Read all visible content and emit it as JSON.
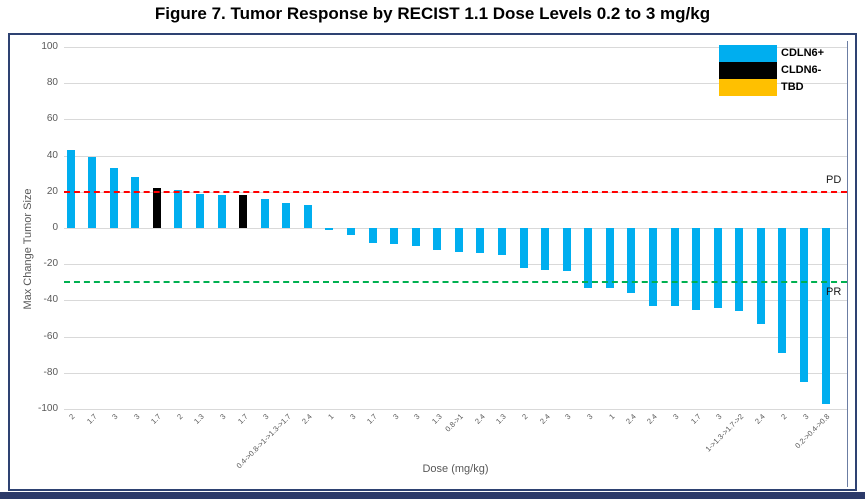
{
  "title": "Figure 7. Tumor Response by RECIST 1.1 Dose Levels 0.2 to 3 mg/kg",
  "colors": {
    "cdln6_positive": "#00AEEF",
    "cldn6_negative": "#000000",
    "tbd": "#FFC000",
    "pd_line": "#FF0000",
    "pr_line": "#00B050",
    "grid": "#D9D9D9",
    "axis_text": "#595959",
    "chart_border": "#2E4272",
    "bottom_strip": "#2C3A69"
  },
  "chart_data": {
    "type": "bar",
    "title": "Figure 7. Tumor Response by RECIST 1.1 Dose Levels 0.2 to 3 mg/kg",
    "xlabel": "Dose (mg/kg)",
    "ylabel": "Max Change Tumor Size",
    "ylim": [
      -100,
      100
    ],
    "yticks": [
      100,
      80,
      60,
      40,
      20,
      0,
      -20,
      -40,
      -60,
      -80,
      -100
    ],
    "grid": true,
    "legend_position": "top-right",
    "legend": [
      {
        "label": "CDLN6+",
        "color": "#00AEEF"
      },
      {
        "label": "CLDN6-",
        "color": "#000000"
      },
      {
        "label": "TBD",
        "color": "#FFC000"
      }
    ],
    "reference_lines": [
      {
        "label": "PD",
        "value": 20,
        "color": "#FF0000"
      },
      {
        "label": "PR",
        "value": -30,
        "color": "#00B050"
      }
    ],
    "bars": [
      {
        "x": "2",
        "y": 43,
        "series": "CDLN6+"
      },
      {
        "x": "1.7",
        "y": 39,
        "series": "CDLN6+"
      },
      {
        "x": "3",
        "y": 33,
        "series": "CDLN6+"
      },
      {
        "x": "3",
        "y": 28,
        "series": "CDLN6+"
      },
      {
        "x": "1.7",
        "y": 22,
        "series": "CLDN6-"
      },
      {
        "x": "2",
        "y": 21,
        "series": "CDLN6+"
      },
      {
        "x": "1.3",
        "y": 19,
        "series": "CDLN6+"
      },
      {
        "x": "3",
        "y": 18,
        "series": "CDLN6+"
      },
      {
        "x": "1.7",
        "y": 18.5,
        "series": "CLDN6-"
      },
      {
        "x": "3",
        "y": 16,
        "series": "CDLN6+"
      },
      {
        "x": "0.4->0.8->1->1.3->1.7",
        "y": 14,
        "series": "CDLN6+"
      },
      {
        "x": "2.4",
        "y": 13,
        "series": "CDLN6+"
      },
      {
        "x": "1",
        "y": -1,
        "series": "CDLN6+"
      },
      {
        "x": "3",
        "y": -4,
        "series": "CDLN6+"
      },
      {
        "x": "1.7",
        "y": -8,
        "series": "CDLN6+"
      },
      {
        "x": "3",
        "y": -9,
        "series": "CDLN6+"
      },
      {
        "x": "3",
        "y": -10,
        "series": "CDLN6+"
      },
      {
        "x": "1.3",
        "y": -12,
        "series": "CDLN6+"
      },
      {
        "x": "0.8->1",
        "y": -13,
        "series": "CDLN6+"
      },
      {
        "x": "2.4",
        "y": -14,
        "series": "CDLN6+"
      },
      {
        "x": "1.3",
        "y": -15,
        "series": "CDLN6+"
      },
      {
        "x": "2",
        "y": -22,
        "series": "CDLN6+"
      },
      {
        "x": "2.4",
        "y": -23,
        "series": "CDLN6+"
      },
      {
        "x": "3",
        "y": -24,
        "series": "CDLN6+"
      },
      {
        "x": "3",
        "y": -33,
        "series": "CDLN6+"
      },
      {
        "x": "1",
        "y": -33,
        "series": "CDLN6+"
      },
      {
        "x": "2.4",
        "y": -36,
        "series": "CDLN6+"
      },
      {
        "x": "2.4",
        "y": -43,
        "series": "CDLN6+"
      },
      {
        "x": "3",
        "y": -43,
        "series": "CDLN6+"
      },
      {
        "x": "1.7",
        "y": -45,
        "series": "CDLN6+"
      },
      {
        "x": "3",
        "y": -44,
        "series": "CDLN6+"
      },
      {
        "x": "1->1.3->1.7->2",
        "y": -46,
        "series": "CDLN6+"
      },
      {
        "x": "2.4",
        "y": -53,
        "series": "CDLN6+"
      },
      {
        "x": "2",
        "y": -69,
        "series": "CDLN6+"
      },
      {
        "x": "3",
        "y": -85,
        "series": "CDLN6+"
      },
      {
        "x": "0.2->0.4->0.8",
        "y": -97,
        "series": "CDLN6+"
      }
    ]
  }
}
